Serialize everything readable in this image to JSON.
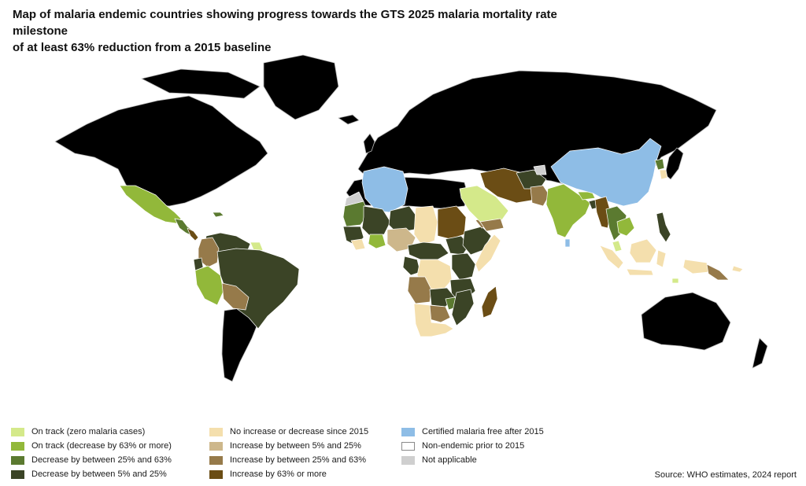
{
  "title_line1": "Map of malaria endemic countries showing progress towards the GTS 2025 malaria mortality rate milestone",
  "title_line2": "of at least 63% reduction from a 2015 baseline",
  "source": "Source: WHO estimates, 2024 report",
  "colors": {
    "zero_cases": "#d4e98a",
    "on_track": "#92b83a",
    "decrease_25_63": "#5b7a30",
    "decrease_5_25": "#3b4426",
    "no_change": "#f4dfad",
    "increase_5_25": "#cdb78b",
    "increase_25_63": "#967a4a",
    "increase_63_plus": "#6b4d15",
    "certified_free": "#8ebde6",
    "non_endemic": "#ffffff",
    "not_applicable": "#cfcfcf"
  },
  "legend": [
    {
      "label": "On track (zero malaria cases)",
      "color": "#d4e98a"
    },
    {
      "label": "On track (decrease by 63% or more)",
      "color": "#92b83a"
    },
    {
      "label": "Decrease by between 25% and 63%",
      "color": "#5b7a30"
    },
    {
      "label": "Decrease by between 5% and 25%",
      "color": "#3b4426"
    },
    {
      "label": "No increase or decrease since 2015",
      "color": "#f4dfad"
    },
    {
      "label": "Increase by between 5% and 25%",
      "color": "#cdb78b"
    },
    {
      "label": "Increase by between 25% and 63%",
      "color": "#967a4a"
    },
    {
      "label": "Increase by 63% or more",
      "color": "#6b4d15"
    },
    {
      "label": "Certified malaria free after 2015",
      "color": "#8ebde6"
    },
    {
      "label": "Non-endemic prior to 2015",
      "color": "#ffffff"
    },
    {
      "label": "Not applicable",
      "color": "#cfcfcf"
    }
  ]
}
